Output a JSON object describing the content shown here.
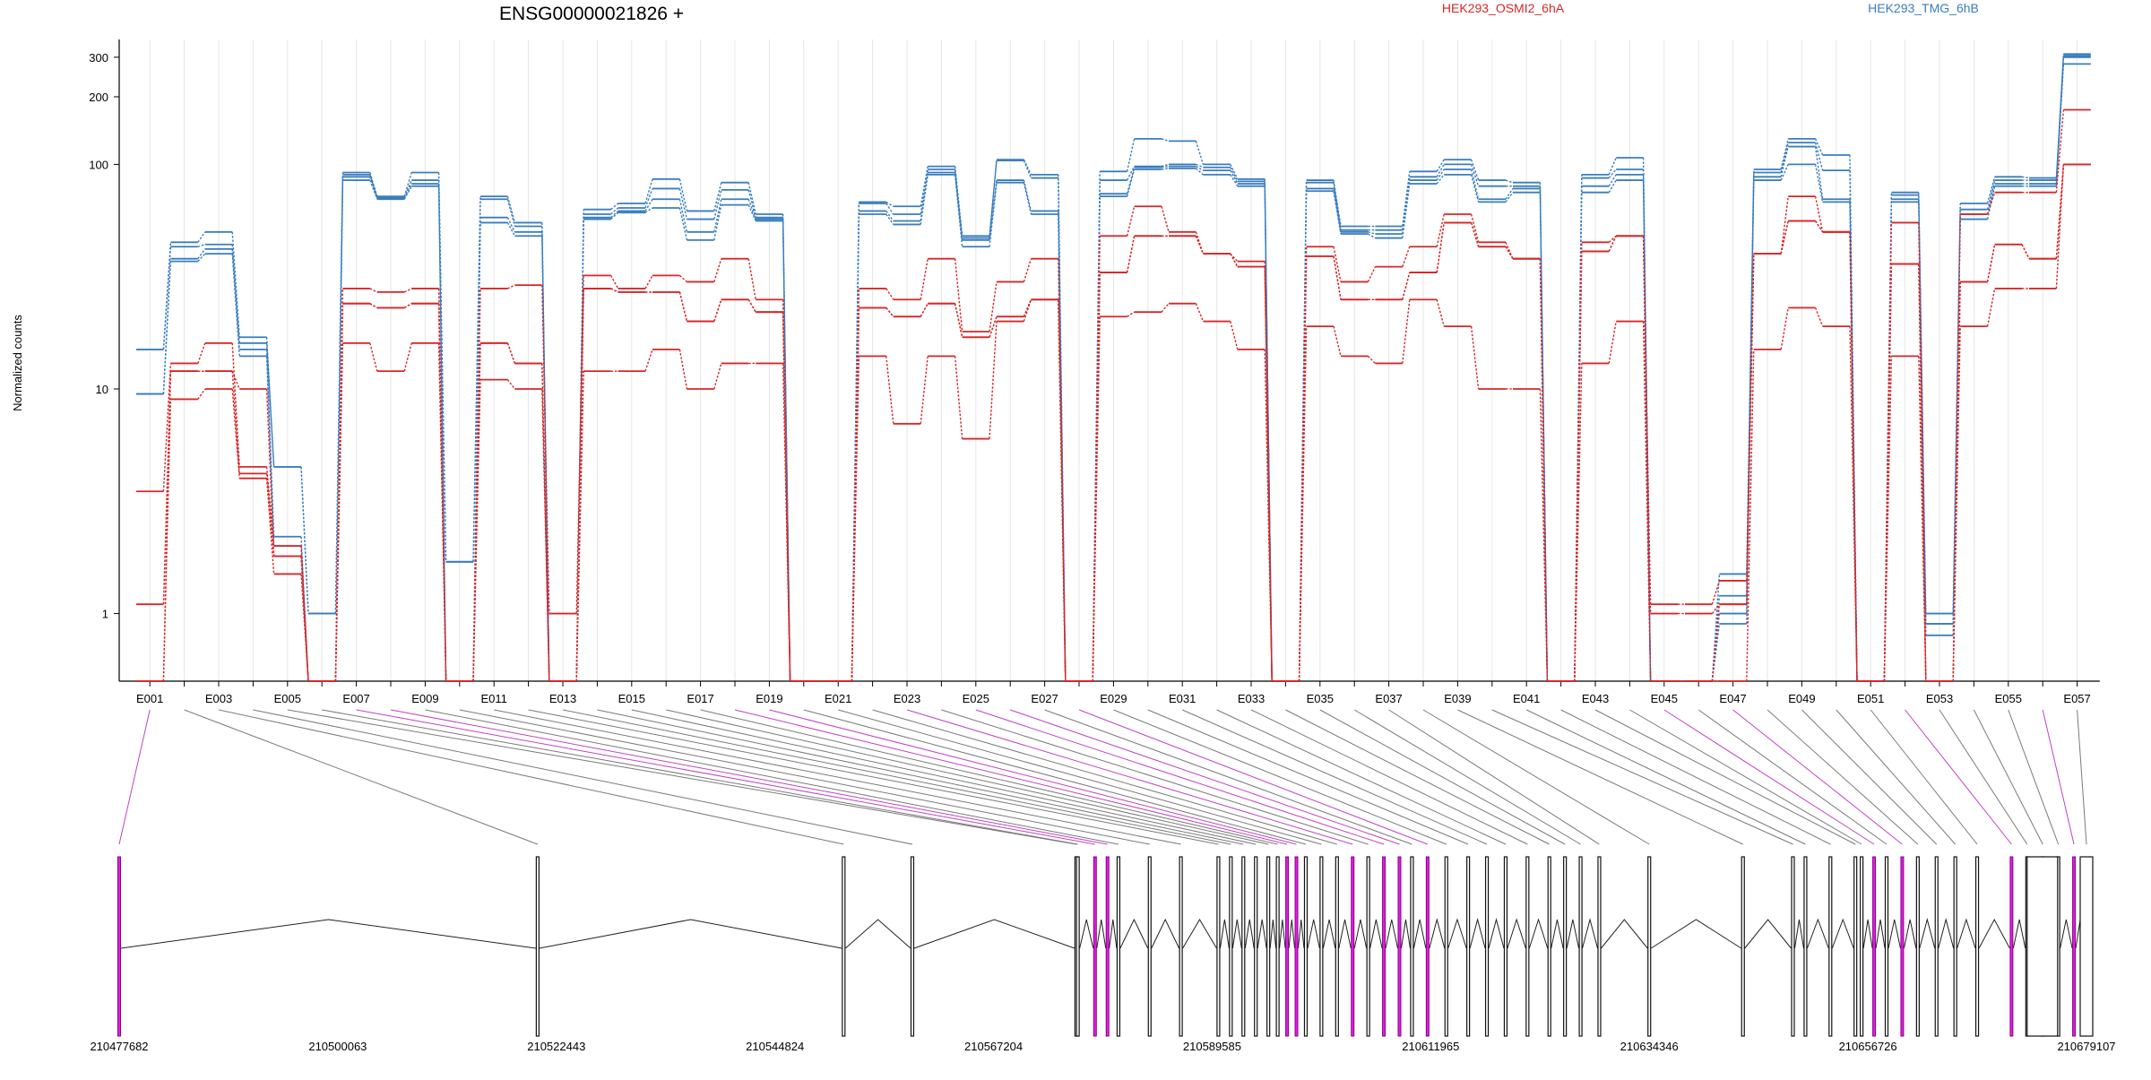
{
  "chart_data": {
    "type": "line",
    "title": "ENSG00000021826 +",
    "ylabel": "Normalized counts",
    "yscale": "log",
    "ylim": [
      0.5,
      360
    ],
    "yticks": [
      1,
      10,
      100,
      200,
      300
    ],
    "bins": [
      "E001",
      "E002",
      "E003",
      "E004",
      "E005",
      "E006",
      "E007",
      "E008",
      "E009",
      "E010",
      "E011",
      "E012",
      "E013",
      "E014",
      "E015",
      "E016",
      "E017",
      "E018",
      "E019",
      "E020",
      "E021",
      "E022",
      "E023",
      "E024",
      "E025",
      "E026",
      "E027",
      "E028",
      "E029",
      "E030",
      "E031",
      "E032",
      "E033",
      "E034",
      "E035",
      "E036",
      "E037",
      "E038",
      "E039",
      "E040",
      "E041",
      "E042",
      "E043",
      "E044",
      "E045",
      "E046",
      "E047",
      "E048",
      "E049",
      "E050",
      "E051",
      "E052",
      "E053",
      "E054",
      "E055",
      "E056",
      "E057"
    ],
    "xticklabels": [
      "E001",
      "E003",
      "E005",
      "E007",
      "E009",
      "E011",
      "E013",
      "E015",
      "E017",
      "E019",
      "E021",
      "E023",
      "E025",
      "E027",
      "E029",
      "E031",
      "E033",
      "E035",
      "E037",
      "E039",
      "E041",
      "E043",
      "E045",
      "E047",
      "E049",
      "E051",
      "E053",
      "E055",
      "E057"
    ],
    "legend": [
      {
        "name": "HEK293_OSMI2_6hA",
        "color": "#d62728"
      },
      {
        "name": "HEK293_TMG_6hB",
        "color": "#3a7dbf"
      }
    ],
    "series": [
      {
        "name": "HEK293_TMG_6hB",
        "color": "#3a7dbf",
        "values": [
          15,
          45,
          50,
          17,
          4.5,
          1.0,
          92,
          72,
          92,
          1.7,
          72,
          55,
          0.5,
          63,
          67,
          86,
          62,
          83,
          60,
          0.5,
          0.5,
          68,
          65,
          98,
          48,
          105,
          90,
          0.5,
          93,
          130,
          127,
          100,
          86,
          0.5,
          85,
          53,
          53,
          93,
          105,
          85,
          83,
          0.5,
          90,
          107,
          0.5,
          0.5,
          1.5,
          95,
          130,
          110,
          0.5,
          75,
          1.0,
          67,
          88,
          87,
          310
        ]
      },
      {
        "name": "HEK293_TMG_6hB",
        "color": "#3a7dbf",
        "values": [
          15,
          43,
          44,
          16,
          4.5,
          1.0,
          90,
          71,
          85,
          1.7,
          70,
          53,
          0.5,
          60,
          64,
          78,
          57,
          77,
          58,
          0.5,
          0.5,
          67,
          60,
          95,
          47,
          104,
          87,
          0.5,
          85,
          98,
          100,
          97,
          84,
          0.5,
          83,
          51,
          51,
          88,
          100,
          80,
          80,
          0.5,
          87,
          95,
          0.5,
          0.5,
          1.2,
          92,
          125,
          94,
          0.5,
          73,
          0.9,
          63,
          85,
          85,
          305
        ]
      },
      {
        "name": "HEK293_TMG_6hB",
        "color": "#3a7dbf",
        "values": [
          9.5,
          38,
          42,
          15,
          2.2,
          0.5,
          88,
          71,
          82,
          0.5,
          58,
          50,
          0.5,
          58,
          62,
          70,
          50,
          70,
          57,
          0.5,
          0.5,
          62,
          56,
          92,
          46,
          85,
          62,
          0.5,
          74,
          97,
          98,
          94,
          82,
          0.5,
          78,
          50,
          49,
          85,
          95,
          70,
          78,
          0.5,
          80,
          90,
          0.5,
          0.5,
          1.0,
          88,
          120,
          70,
          0.5,
          70,
          0.9,
          60,
          82,
          82,
          300
        ]
      },
      {
        "name": "HEK293_TMG_6hB",
        "color": "#3a7dbf",
        "values": [
          9.5,
          37,
          40,
          14,
          2.0,
          0.5,
          85,
          70,
          80,
          0.5,
          55,
          48,
          0.5,
          57,
          61,
          64,
          46,
          66,
          56,
          0.5,
          0.5,
          60,
          54,
          90,
          43,
          83,
          60,
          0.5,
          72,
          95,
          96,
          90,
          80,
          0.5,
          76,
          49,
          47,
          82,
          90,
          68,
          75,
          0.5,
          75,
          85,
          0.5,
          0.5,
          0.9,
          85,
          100,
          68,
          0.5,
          68,
          0.8,
          57,
          80,
          80,
          280
        ]
      },
      {
        "name": "HEK293_OSMI2_6hA",
        "color": "#d62728",
        "values": [
          3.5,
          13,
          16,
          4.5,
          2.0,
          0.5,
          28,
          27,
          28,
          0.5,
          28,
          29,
          1.0,
          32,
          28,
          32,
          30,
          38,
          25,
          0.5,
          0.5,
          28,
          25,
          38,
          18,
          30,
          38,
          0.5,
          48,
          65,
          50,
          40,
          37,
          0.5,
          43,
          30,
          35,
          43,
          60,
          45,
          38,
          0.5,
          45,
          48,
          1.1,
          1.1,
          1.4,
          40,
          72,
          50,
          0.5,
          55,
          0.5,
          60,
          75,
          75,
          175
        ]
      },
      {
        "name": "HEK293_OSMI2_6hA",
        "color": "#d62728",
        "values": [
          1.1,
          12,
          12,
          4.2,
          1.8,
          0.5,
          24,
          23,
          24,
          0.5,
          16,
          13,
          0.5,
          28,
          27,
          27,
          20,
          25,
          22,
          0.5,
          0.5,
          23,
          21,
          24,
          17,
          21,
          25,
          0.5,
          33,
          48,
          48,
          40,
          35,
          0.5,
          39,
          25,
          25,
          33,
          55,
          43,
          38,
          0.5,
          41,
          48,
          1.0,
          1.0,
          1.1,
          40,
          56,
          50,
          0.5,
          36,
          0.5,
          30,
          44,
          38,
          100
        ]
      },
      {
        "name": "HEK293_OSMI2_6hA",
        "color": "#d62728",
        "values": [
          0.5,
          12,
          12,
          10,
          1.8,
          0.5,
          24,
          23,
          24,
          0.5,
          16,
          13,
          0.5,
          28,
          27,
          27,
          20,
          25,
          22,
          0.5,
          0.5,
          23,
          21,
          24,
          17,
          21,
          25,
          0.5,
          33,
          48,
          48,
          40,
          35,
          0.5,
          39,
          25,
          25,
          33,
          55,
          43,
          38,
          0.5,
          41,
          48,
          0.5,
          0.5,
          1.1,
          40,
          56,
          50,
          0.5,
          36,
          0.5,
          30,
          44,
          38,
          100
        ]
      },
      {
        "name": "HEK293_OSMI2_6hA",
        "color": "#d62728",
        "values": [
          0.5,
          9,
          10,
          4.0,
          1.5,
          0.5,
          16,
          12,
          16,
          0.5,
          11,
          10,
          0.5,
          12,
          12,
          15,
          10,
          13,
          13,
          0.5,
          0.5,
          14,
          7,
          14,
          6,
          20,
          25,
          0.5,
          21,
          22,
          24,
          20,
          15,
          0.5,
          19,
          14,
          13,
          25,
          19,
          10,
          10,
          0.5,
          13,
          20,
          0.5,
          0.5,
          0.5,
          15,
          23,
          19,
          0.5,
          14,
          0.5,
          19,
          28,
          28,
          100
        ]
      }
    ],
    "genomic_axis": {
      "ticklabels": [
        "210477682",
        "210500063",
        "210522443",
        "210544824",
        "210567204",
        "210589585",
        "210611965",
        "210634346",
        "210656726",
        "210679107"
      ]
    },
    "grid": true
  }
}
